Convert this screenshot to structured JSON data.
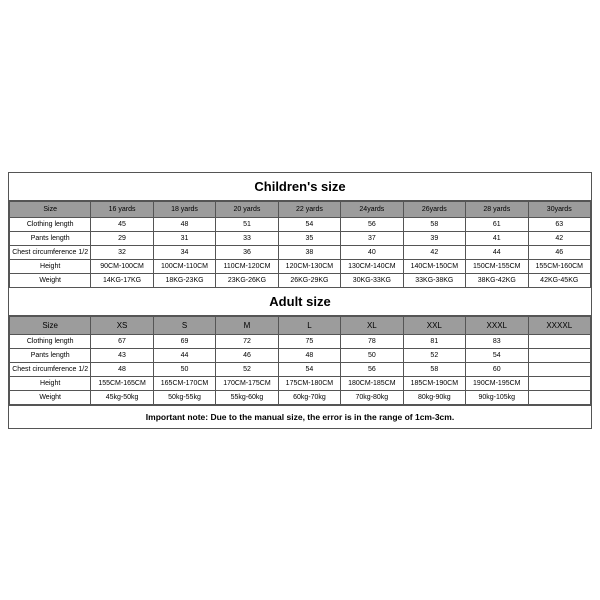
{
  "children": {
    "title": "Children's size",
    "headers": [
      "Size",
      "16 yards",
      "18 yards",
      "20 yards",
      "22 yards",
      "24yards",
      "26yards",
      "28 yards",
      "30yards"
    ],
    "rows": [
      {
        "label": "Clothing length",
        "cells": [
          "45",
          "48",
          "51",
          "54",
          "56",
          "58",
          "61",
          "63"
        ]
      },
      {
        "label": "Pants length",
        "cells": [
          "29",
          "31",
          "33",
          "35",
          "37",
          "39",
          "41",
          "42"
        ]
      },
      {
        "label": "Chest circumference 1/2",
        "cells": [
          "32",
          "34",
          "36",
          "38",
          "40",
          "42",
          "44",
          "46"
        ]
      },
      {
        "label": "Height",
        "cells": [
          "90CM-100CM",
          "100CM-110CM",
          "110CM-120CM",
          "120CM-130CM",
          "130CM-140CM",
          "140CM-150CM",
          "150CM-155CM",
          "155CM-160CM"
        ]
      },
      {
        "label": "Weight",
        "cells": [
          "14KG-17KG",
          "18KG-23KG",
          "23KG-26KG",
          "26KG-29KG",
          "30KG-33KG",
          "33KG-38KG",
          "38KG-42KG",
          "42KG-45KG"
        ]
      }
    ]
  },
  "adult": {
    "title": "Adult size",
    "headers": [
      "Size",
      "XS",
      "S",
      "M",
      "L",
      "XL",
      "XXL",
      "XXXL",
      "XXXXL"
    ],
    "rows": [
      {
        "label": "Clothing length",
        "cells": [
          "67",
          "69",
          "72",
          "75",
          "78",
          "81",
          "83",
          ""
        ]
      },
      {
        "label": "Pants length",
        "cells": [
          "43",
          "44",
          "46",
          "48",
          "50",
          "52",
          "54",
          ""
        ]
      },
      {
        "label": "Chest circumference 1/2",
        "cells": [
          "48",
          "50",
          "52",
          "54",
          "56",
          "58",
          "60",
          ""
        ]
      },
      {
        "label": "Height",
        "cells": [
          "155CM-165CM",
          "165CM-170CM",
          "170CM-175CM",
          "175CM-180CM",
          "180CM-185CM",
          "185CM-190CM",
          "190CM-195CM",
          ""
        ]
      },
      {
        "label": "Weight",
        "cells": [
          "45kg-50kg",
          "50kg-55kg",
          "55kg-60kg",
          "60kg-70kg",
          "70kg-80kg",
          "80kg-90kg",
          "90kg-105kg",
          ""
        ]
      }
    ]
  },
  "note": "Important note: Due to the manual size, the error is in the range of 1cm-3cm.",
  "style": {
    "header_bg": "#9c9c9c",
    "border_color": "#555555",
    "bg": "#ffffff"
  }
}
